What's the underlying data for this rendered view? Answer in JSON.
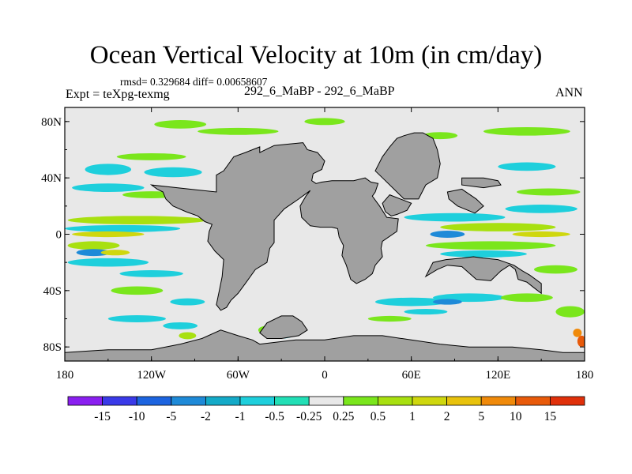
{
  "title": "Ocean Vertical Velocity at 10m (in cm/day)",
  "stats": "rmsd= 0.329684 diff= 0.00658607",
  "left_label": "Expt = teXpg-texmg",
  "center_label": "292_6_MaBP - 292_6_MaBP",
  "right_label": "ANN",
  "lat_ticks": [
    {
      "label": "80N",
      "value": 80
    },
    {
      "label": "40N",
      "value": 40
    },
    {
      "label": "0",
      "value": 0
    },
    {
      "label": "40S",
      "value": -40
    },
    {
      "label": "80S",
      "value": -80
    }
  ],
  "lon_ticks": [
    {
      "label": "180",
      "value": -180
    },
    {
      "label": "120W",
      "value": -120
    },
    {
      "label": "60W",
      "value": -60
    },
    {
      "label": "0",
      "value": 0
    },
    {
      "label": "60E",
      "value": 60
    },
    {
      "label": "120E",
      "value": 120
    },
    {
      "label": "180",
      "value": 180
    }
  ],
  "colorbar": {
    "colors": [
      "#8a1ff0",
      "#3a3ae8",
      "#1c64e0",
      "#1e8ad8",
      "#14aac8",
      "#1ecfdc",
      "#22dfb6",
      "#e8e8e8",
      "#7ae61c",
      "#a8e010",
      "#cfd70e",
      "#e8c20c",
      "#f08a0a",
      "#e85a0a",
      "#e0300a"
    ],
    "labels": [
      "-15",
      "-10",
      "-5",
      "-2",
      "-1",
      "-0.5",
      "-0.25",
      "0.25",
      "0.5",
      "1",
      "2",
      "5",
      "10",
      "15"
    ]
  },
  "land_color": "#a0a0a0",
  "ocean_color": "#e8e8e8",
  "map_data": {
    "land": [
      {
        "name": "americas",
        "points": [
          [
            -75,
            30
          ],
          [
            -75,
            42
          ],
          [
            -70,
            45
          ],
          [
            -63,
            55
          ],
          [
            -55,
            58
          ],
          [
            -45,
            62
          ],
          [
            -45,
            58
          ],
          [
            -35,
            63
          ],
          [
            -25,
            64
          ],
          [
            -15,
            65
          ],
          [
            -12,
            60
          ],
          [
            -5,
            58
          ],
          [
            0,
            52
          ],
          [
            -2,
            46
          ],
          [
            -8,
            43
          ],
          [
            -9,
            38
          ],
          [
            -6,
            36
          ],
          [
            -2,
            37
          ],
          [
            5,
            38
          ],
          [
            12,
            38
          ],
          [
            20,
            38
          ],
          [
            28,
            40
          ],
          [
            32,
            37
          ],
          [
            37,
            36
          ],
          [
            35,
            30
          ],
          [
            33,
            27
          ],
          [
            38,
            20
          ],
          [
            43,
            12
          ],
          [
            51,
            11
          ],
          [
            50,
            2
          ],
          [
            40,
            -5
          ],
          [
            39,
            -10
          ],
          [
            40,
            -16
          ],
          [
            35,
            -22
          ],
          [
            33,
            -28
          ],
          [
            28,
            -32
          ],
          [
            22,
            -35
          ],
          [
            18,
            -32
          ],
          [
            15,
            -22
          ],
          [
            12,
            -15
          ],
          [
            13,
            -8
          ],
          [
            10,
            -2
          ],
          [
            9,
            4
          ],
          [
            5,
            5
          ],
          [
            -3,
            5
          ],
          [
            -10,
            6
          ],
          [
            -16,
            12
          ],
          [
            -17,
            20
          ],
          [
            -13,
            27
          ],
          [
            -10,
            31
          ],
          [
            -18,
            25
          ],
          [
            -28,
            18
          ],
          [
            -35,
            10
          ],
          [
            -35,
            -6
          ],
          [
            -38,
            -10
          ],
          [
            -40,
            -20
          ],
          [
            -48,
            -25
          ],
          [
            -55,
            -35
          ],
          [
            -60,
            -42
          ],
          [
            -65,
            -47
          ],
          [
            -68,
            -52
          ],
          [
            -72,
            -54
          ],
          [
            -75,
            -50
          ],
          [
            -73,
            -40
          ],
          [
            -71,
            -30
          ],
          [
            -70,
            -18
          ],
          [
            -76,
            -12
          ],
          [
            -81,
            -5
          ],
          [
            -80,
            2
          ],
          [
            -78,
            7
          ],
          [
            -83,
            9
          ],
          [
            -88,
            13
          ],
          [
            -96,
            16
          ],
          [
            -105,
            20
          ],
          [
            -110,
            25
          ],
          [
            -112,
            30
          ],
          [
            -116,
            32
          ],
          [
            -120,
            35
          ]
        ]
      },
      {
        "name": "eurasia",
        "points": [
          [
            35,
            45
          ],
          [
            40,
            55
          ],
          [
            45,
            62
          ],
          [
            50,
            68
          ],
          [
            55,
            70
          ],
          [
            62,
            72
          ],
          [
            68,
            72
          ],
          [
            75,
            68
          ],
          [
            78,
            60
          ],
          [
            80,
            50
          ],
          [
            78,
            40
          ],
          [
            70,
            35
          ],
          [
            65,
            25
          ],
          [
            55,
            25
          ],
          [
            50,
            30
          ],
          [
            42,
            38
          ]
        ]
      },
      {
        "name": "arabia",
        "points": [
          [
            45,
            28
          ],
          [
            55,
            24
          ],
          [
            60,
            22
          ],
          [
            57,
            17
          ],
          [
            50,
            14
          ],
          [
            46,
            13
          ],
          [
            42,
            16
          ],
          [
            40,
            22
          ]
        ]
      },
      {
        "name": "australia",
        "points": [
          [
            70,
            -30
          ],
          [
            78,
            -25
          ],
          [
            85,
            -22
          ],
          [
            95,
            -23
          ],
          [
            105,
            -32
          ],
          [
            115,
            -33
          ],
          [
            122,
            -26
          ],
          [
            128,
            -22
          ],
          [
            132,
            -25
          ],
          [
            134,
            -32
          ],
          [
            140,
            -34
          ],
          [
            145,
            -38
          ],
          [
            150,
            -42
          ],
          [
            150,
            -35
          ],
          [
            142,
            -29
          ],
          [
            137,
            -26
          ],
          [
            131,
            -22
          ],
          [
            120,
            -18
          ],
          [
            110,
            -17
          ],
          [
            103,
            -16
          ],
          [
            95,
            -17
          ],
          [
            84,
            -18
          ],
          [
            75,
            -20
          ]
        ]
      },
      {
        "name": "north-east",
        "points": [
          [
            95,
            40
          ],
          [
            110,
            40
          ],
          [
            120,
            38
          ],
          [
            122,
            35
          ],
          [
            110,
            33
          ],
          [
            95,
            35
          ]
        ]
      },
      {
        "name": "islands",
        "points": [
          [
            85,
            30
          ],
          [
            95,
            32
          ],
          [
            105,
            25
          ],
          [
            110,
            20
          ],
          [
            104,
            15
          ],
          [
            92,
            20
          ],
          [
            86,
            25
          ]
        ]
      },
      {
        "name": "antarctica",
        "points": [
          [
            -180,
            -90
          ],
          [
            180,
            -90
          ],
          [
            180,
            -84
          ],
          [
            165,
            -84
          ],
          [
            150,
            -82
          ],
          [
            130,
            -80
          ],
          [
            100,
            -80
          ],
          [
            80,
            -78
          ],
          [
            60,
            -75
          ],
          [
            40,
            -72
          ],
          [
            20,
            -72
          ],
          [
            0,
            -75
          ],
          [
            -20,
            -75
          ],
          [
            -45,
            -78
          ],
          [
            -50,
            -75
          ],
          [
            -60,
            -72
          ],
          [
            -72,
            -68
          ],
          [
            -85,
            -74
          ],
          [
            -100,
            -78
          ],
          [
            -120,
            -82
          ],
          [
            -150,
            -82
          ],
          [
            -180,
            -84
          ]
        ]
      },
      {
        "name": "south-gulf",
        "points": [
          [
            -30,
            -58
          ],
          [
            -22,
            -58
          ],
          [
            -16,
            -62
          ],
          [
            -12,
            -68
          ],
          [
            -18,
            -72
          ],
          [
            -30,
            -74
          ],
          [
            -40,
            -74
          ],
          [
            -45,
            -70
          ],
          [
            -40,
            -63
          ]
        ]
      }
    ],
    "anomalies": [
      {
        "color": "#7ae61c",
        "cx": -100,
        "cy": 78,
        "rx": 18,
        "ry": 3
      },
      {
        "color": "#7ae61c",
        "cx": -60,
        "cy": 73,
        "rx": 28,
        "ry": 2.5
      },
      {
        "color": "#7ae61c",
        "cx": 0,
        "cy": 80,
        "rx": 14,
        "ry": 2.5
      },
      {
        "color": "#7ae61c",
        "cx": 140,
        "cy": 73,
        "rx": 30,
        "ry": 3
      },
      {
        "color": "#7ae61c",
        "cx": 80,
        "cy": 70,
        "rx": 12,
        "ry": 2.5
      },
      {
        "color": "#7ae61c",
        "cx": -120,
        "cy": 55,
        "rx": 24,
        "ry": 2.5
      },
      {
        "color": "#1ecfdc",
        "cx": -150,
        "cy": 46,
        "rx": 16,
        "ry": 4
      },
      {
        "color": "#1ecfdc",
        "cx": -105,
        "cy": 44,
        "rx": 20,
        "ry": 3.5
      },
      {
        "color": "#1ecfdc",
        "cx": -150,
        "cy": 33,
        "rx": 25,
        "ry": 3
      },
      {
        "color": "#7ae61c",
        "cx": -120,
        "cy": 28,
        "rx": 20,
        "ry": 2.5
      },
      {
        "color": "#1ecfdc",
        "cx": 140,
        "cy": 48,
        "rx": 20,
        "ry": 3
      },
      {
        "color": "#7ae61c",
        "cx": 155,
        "cy": 30,
        "rx": 22,
        "ry": 2.5
      },
      {
        "color": "#1ecfdc",
        "cx": 150,
        "cy": 18,
        "rx": 25,
        "ry": 3
      },
      {
        "color": "#a8e010",
        "cx": -130,
        "cy": 10,
        "rx": 48,
        "ry": 3
      },
      {
        "color": "#1ecfdc",
        "cx": -140,
        "cy": 4,
        "rx": 40,
        "ry": 2.5
      },
      {
        "color": "#cfd70e",
        "cx": -150,
        "cy": 0,
        "rx": 25,
        "ry": 2
      },
      {
        "color": "#a8e010",
        "cx": -160,
        "cy": -8,
        "rx": 18,
        "ry": 3
      },
      {
        "color": "#1e8ad8",
        "cx": -160,
        "cy": -13,
        "rx": 12,
        "ry": 2.5
      },
      {
        "color": "#cfd70e",
        "cx": -145,
        "cy": -13,
        "rx": 10,
        "ry": 2
      },
      {
        "color": "#1ecfdc",
        "cx": -150,
        "cy": -20,
        "rx": 28,
        "ry": 3
      },
      {
        "color": "#1ecfdc",
        "cx": -120,
        "cy": -28,
        "rx": 22,
        "ry": 2.5
      },
      {
        "color": "#7ae61c",
        "cx": -130,
        "cy": -40,
        "rx": 18,
        "ry": 3
      },
      {
        "color": "#1ecfdc",
        "cx": -95,
        "cy": -48,
        "rx": 12,
        "ry": 2.5
      },
      {
        "color": "#1ecfdc",
        "cx": -130,
        "cy": -60,
        "rx": 20,
        "ry": 2.5
      },
      {
        "color": "#1ecfdc",
        "cx": -100,
        "cy": -65,
        "rx": 12,
        "ry": 2.5
      },
      {
        "color": "#a8e010",
        "cx": -95,
        "cy": -72,
        "rx": 6,
        "ry": 2.5
      },
      {
        "color": "#1ecfdc",
        "cx": 90,
        "cy": 12,
        "rx": 35,
        "ry": 3
      },
      {
        "color": "#a8e010",
        "cx": 120,
        "cy": 5,
        "rx": 40,
        "ry": 3
      },
      {
        "color": "#1e8ad8",
        "cx": 85,
        "cy": 0,
        "rx": 12,
        "ry": 2.5
      },
      {
        "color": "#cfd70e",
        "cx": 150,
        "cy": 0,
        "rx": 20,
        "ry": 2
      },
      {
        "color": "#7ae61c",
        "cx": 115,
        "cy": -8,
        "rx": 45,
        "ry": 3
      },
      {
        "color": "#1ecfdc",
        "cx": 110,
        "cy": -14,
        "rx": 30,
        "ry": 2.5
      },
      {
        "color": "#7ae61c",
        "cx": 160,
        "cy": -25,
        "rx": 15,
        "ry": 3
      },
      {
        "color": "#1ecfdc",
        "cx": 100,
        "cy": -45,
        "rx": 25,
        "ry": 3
      },
      {
        "color": "#1ecfdc",
        "cx": 60,
        "cy": -48,
        "rx": 25,
        "ry": 3
      },
      {
        "color": "#7ae61c",
        "cx": 140,
        "cy": -45,
        "rx": 18,
        "ry": 3
      },
      {
        "color": "#1e8ad8",
        "cx": 85,
        "cy": -48,
        "rx": 10,
        "ry": 2
      },
      {
        "color": "#1ecfdc",
        "cx": 70,
        "cy": -55,
        "rx": 15,
        "ry": 2
      },
      {
        "color": "#7ae61c",
        "cx": 170,
        "cy": -55,
        "rx": 10,
        "ry": 4
      },
      {
        "color": "#e85a0a",
        "cx": 178,
        "cy": -76,
        "rx": 3,
        "ry": 4
      },
      {
        "color": "#f08a0a",
        "cx": 175,
        "cy": -70,
        "rx": 3,
        "ry": 3
      },
      {
        "color": "#7ae61c",
        "cx": -65,
        "cy": 3,
        "rx": 8,
        "ry": 2
      },
      {
        "color": "#1ecfdc",
        "cx": -50,
        "cy": 2,
        "rx": 10,
        "ry": 2
      },
      {
        "color": "#7ae61c",
        "cx": -40,
        "cy": -68,
        "rx": 6,
        "ry": 3
      },
      {
        "color": "#1ecfdc",
        "cx": -30,
        "cy": -72,
        "rx": 8,
        "ry": 2
      },
      {
        "color": "#7ae61c",
        "cx": 45,
        "cy": -60,
        "rx": 15,
        "ry": 2
      }
    ]
  }
}
